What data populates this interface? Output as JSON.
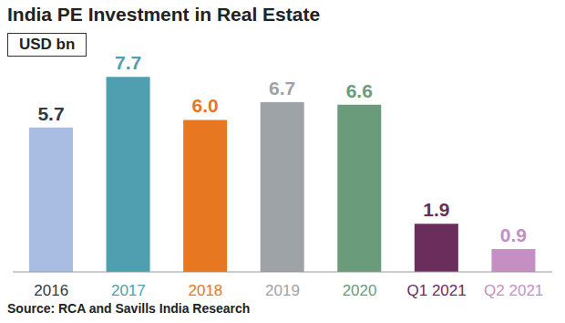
{
  "chart_data": {
    "type": "bar",
    "title": "India PE Investment in Real Estate",
    "subtitle": "USD bn",
    "source": "Source: RCA and Savills India Research",
    "categories": [
      "2016",
      "2017",
      "2018",
      "2019",
      "2020",
      "Q1 2021",
      "Q2 2021"
    ],
    "values": [
      5.7,
      7.7,
      6.0,
      6.7,
      6.6,
      1.9,
      0.9
    ],
    "value_labels": [
      "5.7",
      "7.7",
      "6.0",
      "6.7",
      "6.6",
      "1.9",
      "0.9"
    ],
    "colors": [
      "#a9bde3",
      "#4f9fb0",
      "#e87722",
      "#9ea3a8",
      "#6a9c7c",
      "#6b2d5c",
      "#c58fc4"
    ],
    "data_labels": true,
    "tick_labels": "x",
    "grid": false
  }
}
